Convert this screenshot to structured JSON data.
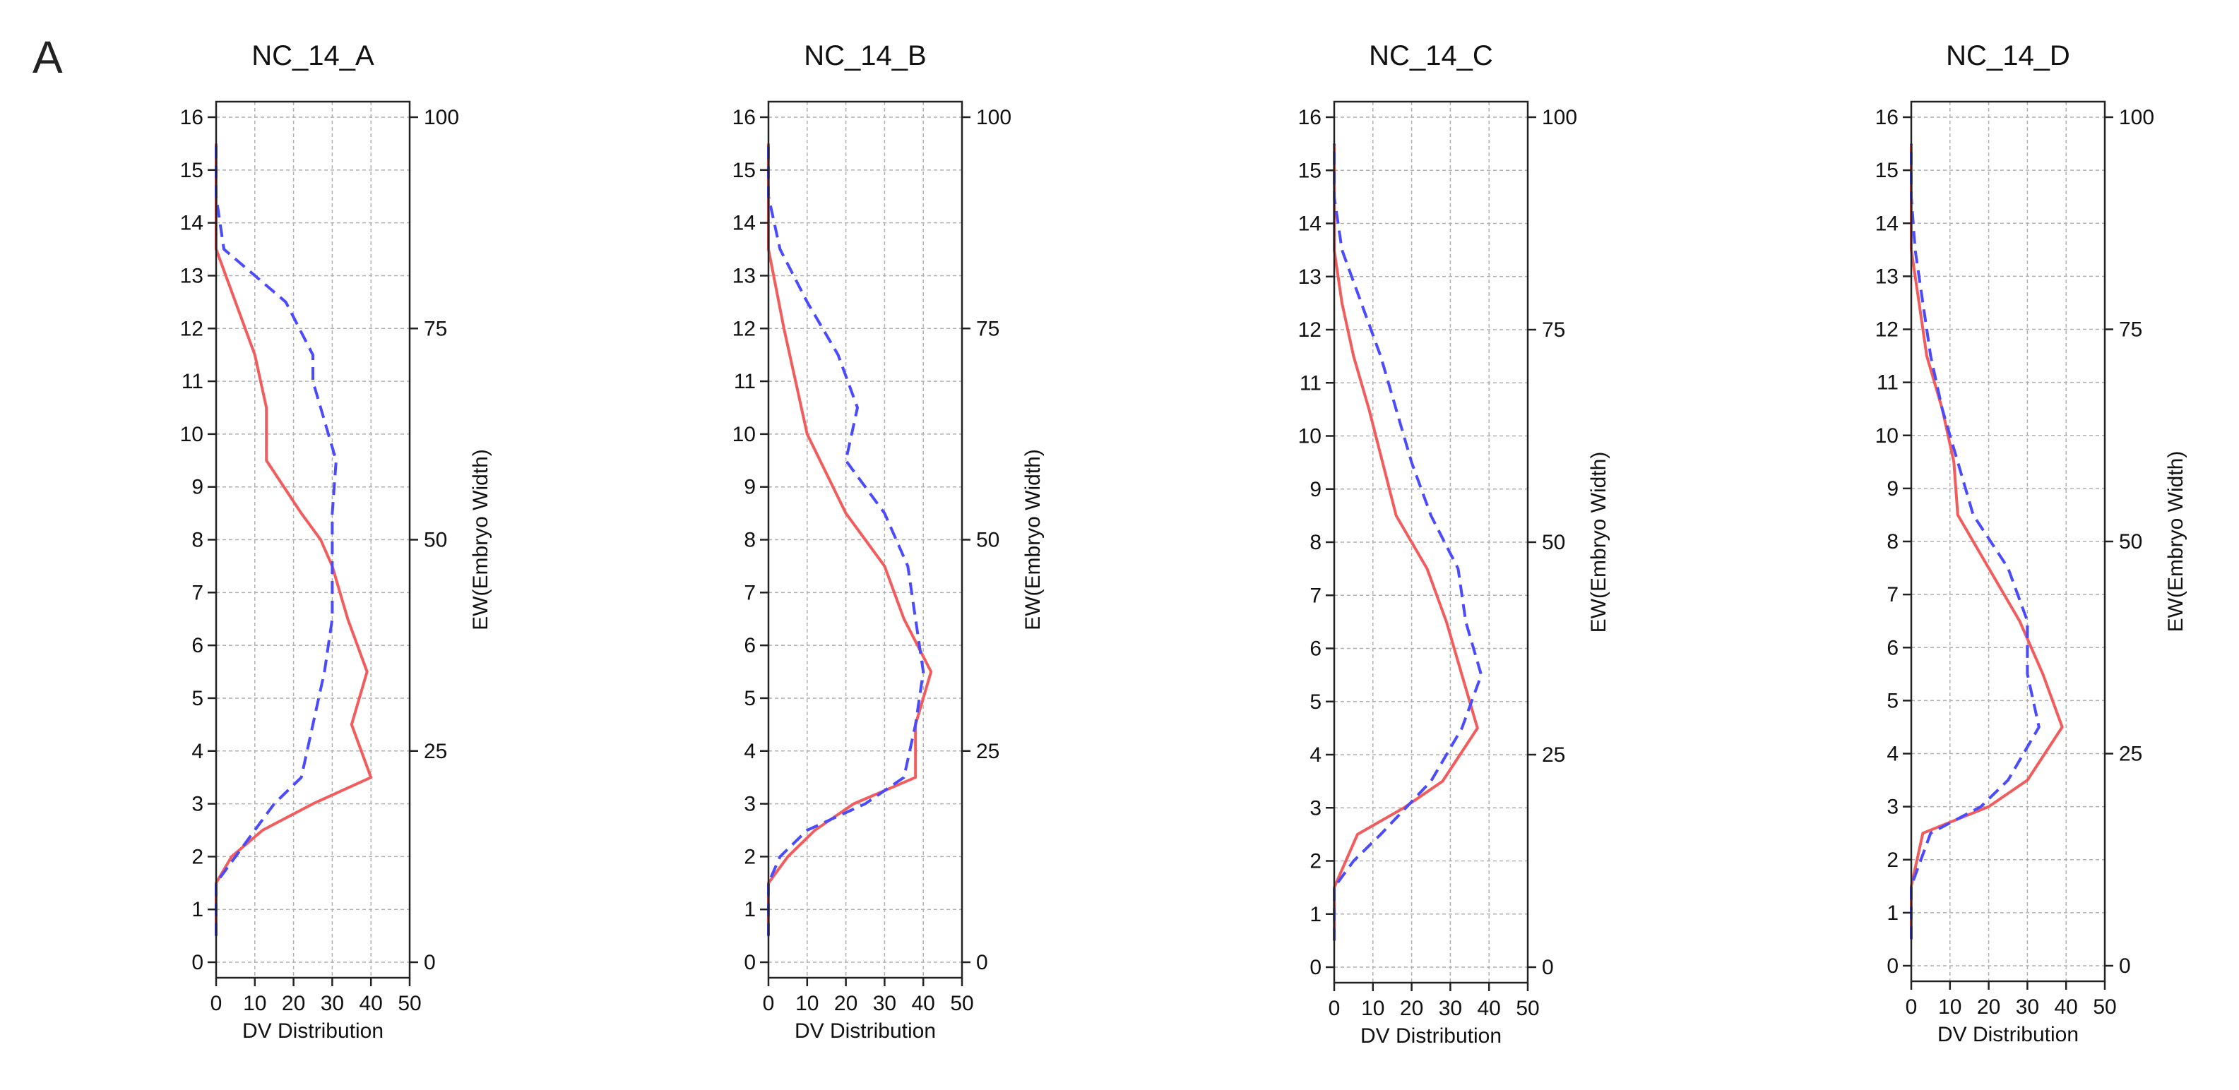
{
  "panel_label": "A",
  "colors": {
    "series_solid": "#f25c5c",
    "series_dashed": "#4a4aff",
    "axis": "#222222",
    "grid": "#b0b0b0"
  },
  "chart_data": [
    {
      "type": "line",
      "title": "NC_14_A",
      "xlabel": "DV Distribution",
      "ylabel": "",
      "y2label": "EW(Embryo Width)",
      "xlim": [
        0,
        50
      ],
      "ylim": [
        0,
        16
      ],
      "y2lim": [
        0,
        100
      ],
      "xticks": [
        0,
        10,
        20,
        30,
        40,
        50
      ],
      "yticks": [
        0,
        1,
        2,
        3,
        4,
        5,
        6,
        7,
        8,
        9,
        10,
        11,
        12,
        13,
        14,
        15,
        16
      ],
      "y2ticks": [
        0,
        25,
        50,
        75,
        100
      ],
      "grid": true,
      "series": [
        {
          "style": "solid",
          "points": [
            [
              0,
              0.5
            ],
            [
              0,
              1.5
            ],
            [
              4,
              2
            ],
            [
              12,
              2.5
            ],
            [
              25,
              3
            ],
            [
              40,
              3.5
            ],
            [
              35,
              4.5
            ],
            [
              39,
              5.5
            ],
            [
              34,
              6.5
            ],
            [
              30,
              7.5
            ],
            [
              27,
              8
            ],
            [
              22,
              8.5
            ],
            [
              13,
              9.5
            ],
            [
              13,
              10.5
            ],
            [
              10,
              11.5
            ],
            [
              5,
              12.5
            ],
            [
              0,
              13.5
            ],
            [
              0,
              15.5
            ]
          ]
        },
        {
          "style": "dashed",
          "points": [
            [
              0,
              0.5
            ],
            [
              0,
              1.5
            ],
            [
              5,
              2
            ],
            [
              10,
              2.5
            ],
            [
              15,
              3
            ],
            [
              22,
              3.5
            ],
            [
              25,
              4.5
            ],
            [
              28,
              5.5
            ],
            [
              30,
              6.5
            ],
            [
              30,
              7.5
            ],
            [
              30,
              8.5
            ],
            [
              31,
              9.5
            ],
            [
              27,
              10.5
            ],
            [
              25,
              11
            ],
            [
              25,
              11.5
            ],
            [
              18,
              12.5
            ],
            [
              10,
              13
            ],
            [
              2,
              13.5
            ],
            [
              0,
              14.5
            ],
            [
              0,
              15.5
            ]
          ]
        }
      ]
    },
    {
      "type": "line",
      "title": "NC_14_B",
      "xlabel": "DV Distribution",
      "ylabel": "",
      "y2label": "EW(Embryo Width)",
      "xlim": [
        0,
        50
      ],
      "ylim": [
        0,
        16
      ],
      "y2lim": [
        0,
        100
      ],
      "xticks": [
        0,
        10,
        20,
        30,
        40,
        50
      ],
      "yticks": [
        0,
        1,
        2,
        3,
        4,
        5,
        6,
        7,
        8,
        9,
        10,
        11,
        12,
        13,
        14,
        15,
        16
      ],
      "y2ticks": [
        0,
        25,
        50,
        75,
        100
      ],
      "grid": true,
      "series": [
        {
          "style": "solid",
          "points": [
            [
              0,
              0.5
            ],
            [
              0,
              1.5
            ],
            [
              5,
              2
            ],
            [
              12,
              2.5
            ],
            [
              22,
              3
            ],
            [
              38,
              3.5
            ],
            [
              38,
              4.5
            ],
            [
              42,
              5.5
            ],
            [
              35,
              6.5
            ],
            [
              30,
              7.5
            ],
            [
              20,
              8.5
            ],
            [
              10,
              10
            ],
            [
              7,
              11
            ],
            [
              4,
              12
            ],
            [
              0,
              13.5
            ],
            [
              0,
              15.5
            ]
          ]
        },
        {
          "style": "dashed",
          "points": [
            [
              0,
              0.5
            ],
            [
              0,
              1.5
            ],
            [
              3,
              2
            ],
            [
              10,
              2.5
            ],
            [
              25,
              3
            ],
            [
              35,
              3.5
            ],
            [
              38,
              4.5
            ],
            [
              40,
              5.5
            ],
            [
              38,
              6.5
            ],
            [
              36,
              7.5
            ],
            [
              30,
              8.5
            ],
            [
              20,
              9.5
            ],
            [
              23,
              10.5
            ],
            [
              18,
              11.5
            ],
            [
              10,
              12.5
            ],
            [
              3,
              13.5
            ],
            [
              0,
              14.5
            ],
            [
              0,
              15.5
            ]
          ]
        }
      ]
    },
    {
      "type": "line",
      "title": "NC_14_C",
      "xlabel": "DV Distribution",
      "ylabel": "",
      "y2label": "EW(Embryo Width)",
      "xlim": [
        0,
        50
      ],
      "ylim": [
        0,
        16
      ],
      "y2lim": [
        0,
        100
      ],
      "xticks": [
        0,
        10,
        20,
        30,
        40,
        50
      ],
      "yticks": [
        0,
        1,
        2,
        3,
        4,
        5,
        6,
        7,
        8,
        9,
        10,
        11,
        12,
        13,
        14,
        15,
        16
      ],
      "y2ticks": [
        0,
        25,
        50,
        75,
        100
      ],
      "grid": true,
      "series": [
        {
          "style": "solid",
          "points": [
            [
              0,
              0.5
            ],
            [
              0,
              1.5
            ],
            [
              6,
              2.5
            ],
            [
              18,
              3
            ],
            [
              28,
              3.5
            ],
            [
              37,
              4.5
            ],
            [
              33,
              5.5
            ],
            [
              29,
              6.5
            ],
            [
              24,
              7.5
            ],
            [
              16,
              8.5
            ],
            [
              9,
              10.5
            ],
            [
              5,
              11.5
            ],
            [
              2,
              12.5
            ],
            [
              0,
              13.5
            ],
            [
              0,
              15.5
            ]
          ]
        },
        {
          "style": "dashed",
          "points": [
            [
              0,
              0.5
            ],
            [
              0,
              1.5
            ],
            [
              5,
              2
            ],
            [
              12,
              2.5
            ],
            [
              25,
              3.5
            ],
            [
              33,
              4.5
            ],
            [
              38,
              5.5
            ],
            [
              34,
              6.5
            ],
            [
              32,
              7.5
            ],
            [
              25,
              8.5
            ],
            [
              20,
              9.5
            ],
            [
              16,
              10.5
            ],
            [
              12,
              11.5
            ],
            [
              7,
              12.5
            ],
            [
              2,
              13.5
            ],
            [
              0,
              14.5
            ],
            [
              0,
              15.5
            ]
          ]
        }
      ]
    },
    {
      "type": "line",
      "title": "NC_14_D",
      "xlabel": "DV Distribution",
      "ylabel": "",
      "y2label": "EW(Embryo Width)",
      "xlim": [
        0,
        50
      ],
      "ylim": [
        0,
        16
      ],
      "y2lim": [
        0,
        100
      ],
      "xticks": [
        0,
        10,
        20,
        30,
        40,
        50
      ],
      "yticks": [
        0,
        1,
        2,
        3,
        4,
        5,
        6,
        7,
        8,
        9,
        10,
        11,
        12,
        13,
        14,
        15,
        16
      ],
      "y2ticks": [
        0,
        25,
        50,
        75,
        100
      ],
      "grid": true,
      "series": [
        {
          "style": "solid",
          "points": [
            [
              0,
              0.5
            ],
            [
              0,
              1.5
            ],
            [
              3,
              2.5
            ],
            [
              20,
              3
            ],
            [
              30,
              3.5
            ],
            [
              39,
              4.5
            ],
            [
              34,
              5.5
            ],
            [
              28,
              6.5
            ],
            [
              20,
              7.5
            ],
            [
              12,
              8.5
            ],
            [
              11,
              9.5
            ],
            [
              8,
              10.5
            ],
            [
              4,
              11.5
            ],
            [
              2,
              12.5
            ],
            [
              0,
              13.5
            ],
            [
              0,
              15.5
            ]
          ]
        },
        {
          "style": "dashed",
          "points": [
            [
              0,
              0.5
            ],
            [
              0,
              1.5
            ],
            [
              5,
              2.5
            ],
            [
              18,
              3
            ],
            [
              25,
              3.5
            ],
            [
              33,
              4.5
            ],
            [
              30,
              5.5
            ],
            [
              30,
              6.5
            ],
            [
              25,
              7.5
            ],
            [
              16,
              8.5
            ],
            [
              12,
              9.5
            ],
            [
              8,
              10.5
            ],
            [
              5,
              11.5
            ],
            [
              3,
              12.5
            ],
            [
              1,
              13.5
            ],
            [
              0,
              14.5
            ],
            [
              0,
              15.5
            ]
          ]
        }
      ]
    }
  ]
}
